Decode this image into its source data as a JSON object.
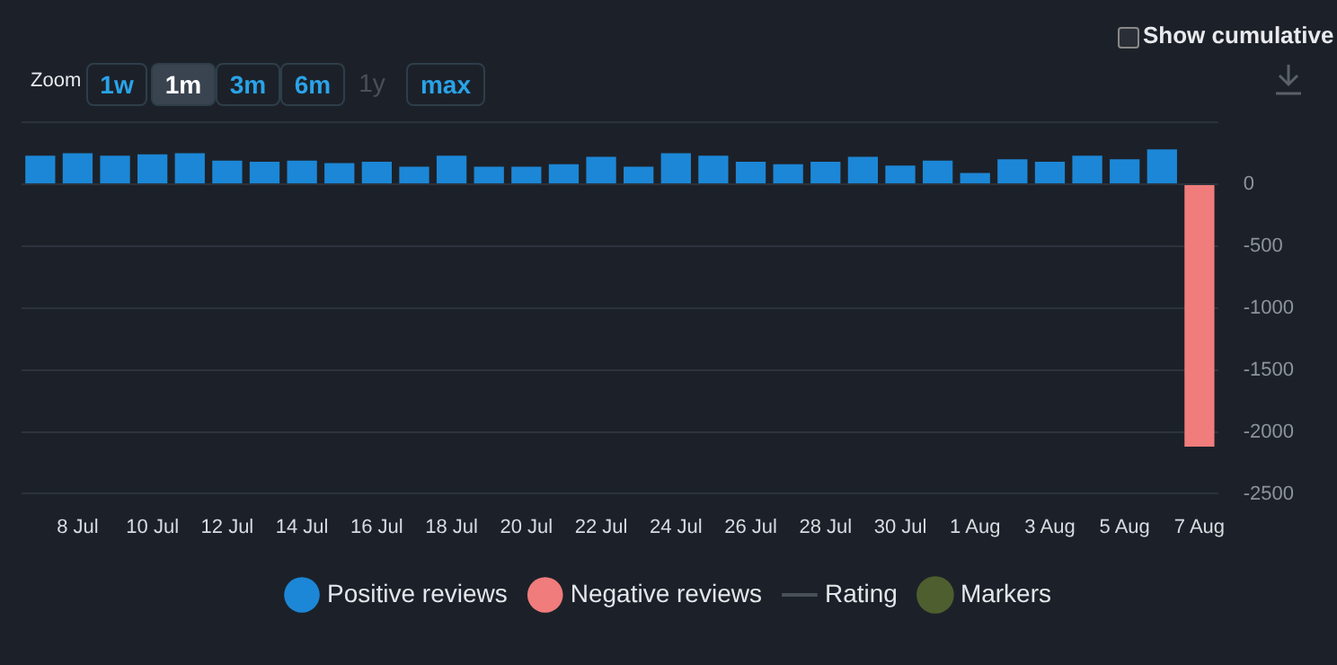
{
  "chart_data": {
    "type": "bar",
    "stacked": true,
    "categories": [
      null,
      "8 Jul",
      null,
      "10 Jul",
      null,
      "12 Jul",
      null,
      "14 Jul",
      null,
      "16 Jul",
      null,
      "18 Jul",
      null,
      "20 Jul",
      null,
      "22 Jul",
      null,
      "24 Jul",
      null,
      "26 Jul",
      null,
      "28 Jul",
      null,
      "30 Jul",
      null,
      "1 Aug",
      null,
      "3 Aug",
      null,
      "5 Aug",
      null,
      "7 Aug"
    ],
    "series": [
      {
        "name": "Positive reviews",
        "color": "#1c87d6",
        "values": [
          230,
          250,
          230,
          240,
          250,
          190,
          180,
          190,
          170,
          180,
          140,
          230,
          140,
          140,
          160,
          220,
          140,
          250,
          230,
          180,
          160,
          180,
          220,
          150,
          190,
          90,
          200,
          180,
          230,
          200,
          280,
          null
        ]
      },
      {
        "name": "Negative reviews",
        "color": "#f07c7c",
        "values": [
          null,
          null,
          null,
          null,
          null,
          null,
          null,
          null,
          null,
          null,
          null,
          null,
          null,
          null,
          null,
          null,
          null,
          null,
          null,
          null,
          null,
          null,
          null,
          null,
          null,
          null,
          null,
          null,
          null,
          null,
          null,
          -2120
        ]
      },
      {
        "name": "Rating",
        "type": "line",
        "color": "#4a505a",
        "values": [
          null,
          null,
          null,
          null,
          null,
          null,
          null,
          null,
          null,
          null,
          null,
          null,
          null,
          null,
          null,
          null,
          null,
          null,
          null,
          null,
          null,
          null,
          null,
          null,
          null,
          null,
          null,
          null,
          null,
          null,
          null,
          null
        ]
      },
      {
        "name": "Markers",
        "type": "scatter",
        "color": "#4f5e2f",
        "values": [
          null,
          null,
          null,
          null,
          null,
          null,
          null,
          null,
          null,
          null,
          null,
          null,
          null,
          null,
          null,
          null,
          null,
          null,
          null,
          null,
          null,
          null,
          null,
          null,
          null,
          null,
          null,
          null,
          null,
          null,
          null,
          null
        ]
      }
    ],
    "ylim": [
      -2530,
      500
    ],
    "yticks": [
      0,
      -500,
      -1000,
      -1500,
      -2000,
      -2500
    ],
    "grid": "y",
    "legend": "bottom",
    "annotations": [
      "Show cumulative",
      "Zoom",
      "1w",
      "1m",
      "3m",
      "6m",
      "1y",
      "max"
    ]
  }
}
